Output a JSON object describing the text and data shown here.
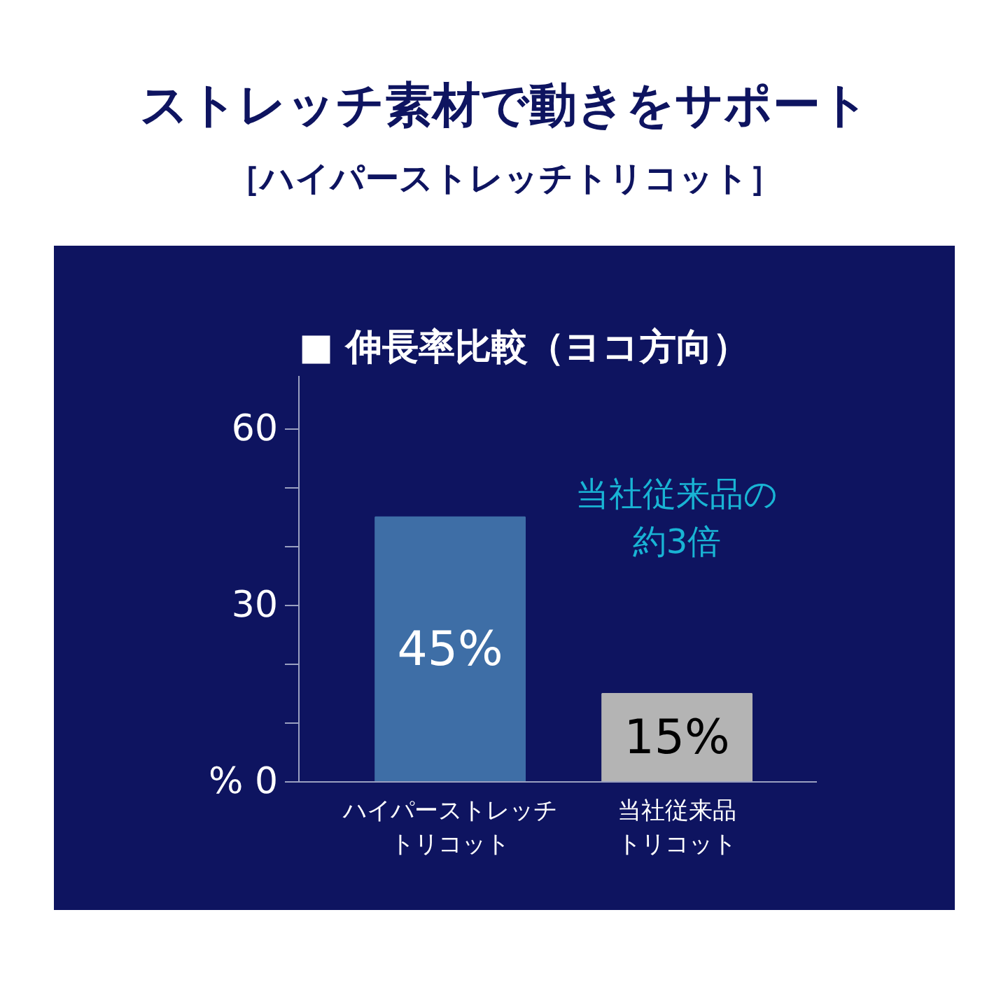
{
  "chart_data": {
    "type": "bar",
    "title": "ストレッチ素材で動きをサポート",
    "subtitle": "［ハイパーストレッチトリコット］",
    "annotations": [
      "■ 伸長率比較（ヨコ方向）",
      "当社従来品の約3倍"
    ],
    "categories": [
      "ハイパーストレッチトリコット",
      "当社従来品トリコット"
    ],
    "values": [
      45,
      15
    ],
    "colors": [
      "#3e6ea6",
      "#b4b4b4"
    ],
    "value_labels": [
      "45%",
      "15%"
    ],
    "ylim": [
      0,
      69
    ],
    "yticks": [
      {
        "value": 0,
        "label": "% 0"
      },
      {
        "value": 10,
        "label": null
      },
      {
        "value": 20,
        "label": null
      },
      30,
      {
        "value": 40,
        "label": null
      },
      {
        "value": 50,
        "label": null
      },
      60
    ],
    "grid": false
  }
}
